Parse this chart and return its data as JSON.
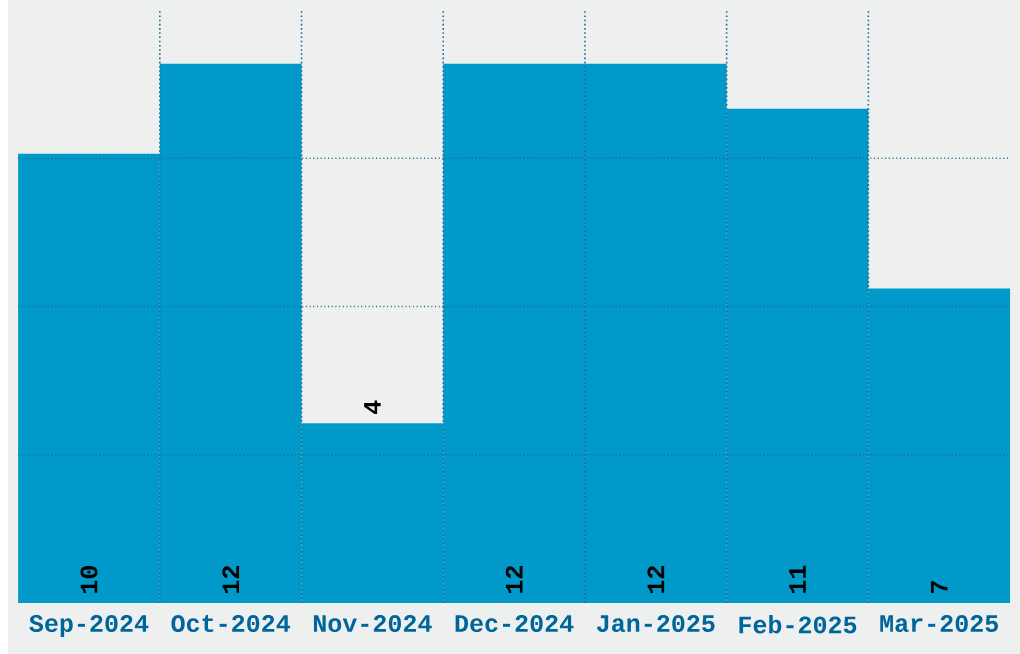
{
  "chart_data": {
    "type": "bar",
    "categories": [
      "Sep-2024",
      "Oct-2024",
      "Nov-2024",
      "Dec-2024",
      "Jan-2025",
      "Feb-2025",
      "Mar-2025"
    ],
    "values": [
      10,
      12,
      4,
      12,
      12,
      11,
      7
    ],
    "color": "#0099c9",
    "ylim": [
      0,
      13.2
    ],
    "yticks": [
      {
        "value": 3.3,
        "label": null
      },
      {
        "value": 6.6,
        "label": null
      },
      {
        "value": 9.9,
        "label": null
      }
    ],
    "grid": true,
    "tick_labels": "x",
    "data_labels": true
  }
}
